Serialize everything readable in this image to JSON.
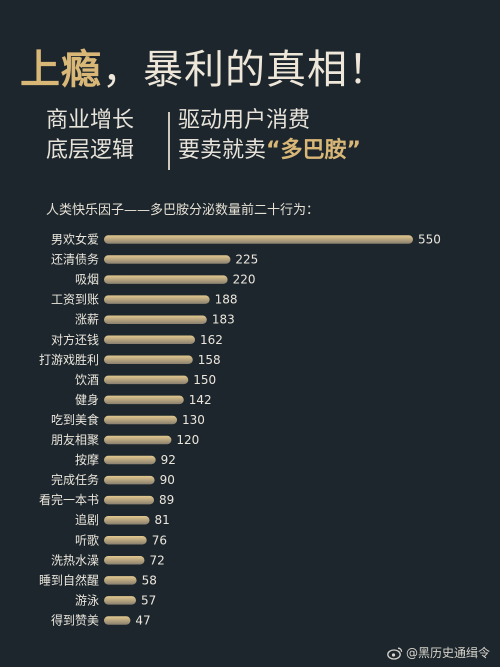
{
  "title": {
    "part1": "上瘾",
    "part2": "，暴利的真相！"
  },
  "subtitle": {
    "left_line1": "商业增长",
    "left_line2": "底层逻辑",
    "right_line1": "驱动用户消费",
    "right_line2_prefix": "要卖就卖",
    "right_line2_highlight": "“多巴胺”"
  },
  "chart_caption": "人类快乐因子——多巴胺分泌数量前二十行为：",
  "watermark": "@黑历史通缉令",
  "colors": {
    "background": "#1c262c",
    "accent_gold": "#d9b777",
    "bar_top": "#e3c98f",
    "bar_bottom": "#8a806f"
  },
  "chart_data": {
    "type": "bar",
    "orientation": "horizontal",
    "categories": [
      "男欢女爱",
      "还清债务",
      "吸烟",
      "工资到账",
      "涨薪",
      "对方还钱",
      "打游戏胜利",
      "饮酒",
      "健身",
      "吃到美食",
      "朋友相聚",
      "按摩",
      "完成任务",
      "看完一本书",
      "追剧",
      "听歌",
      "洗热水澡",
      "睡到自然醒",
      "游泳",
      "得到赞美"
    ],
    "values": [
      550,
      225,
      220,
      188,
      183,
      162,
      158,
      150,
      142,
      130,
      120,
      92,
      90,
      89,
      81,
      76,
      72,
      58,
      57,
      47
    ],
    "title": "人类快乐因子——多巴胺分泌数量前二十行为：",
    "xlabel": "",
    "ylabel": "",
    "xlim": [
      0,
      550
    ],
    "grid": false,
    "legend": "none",
    "data_labels": true
  }
}
